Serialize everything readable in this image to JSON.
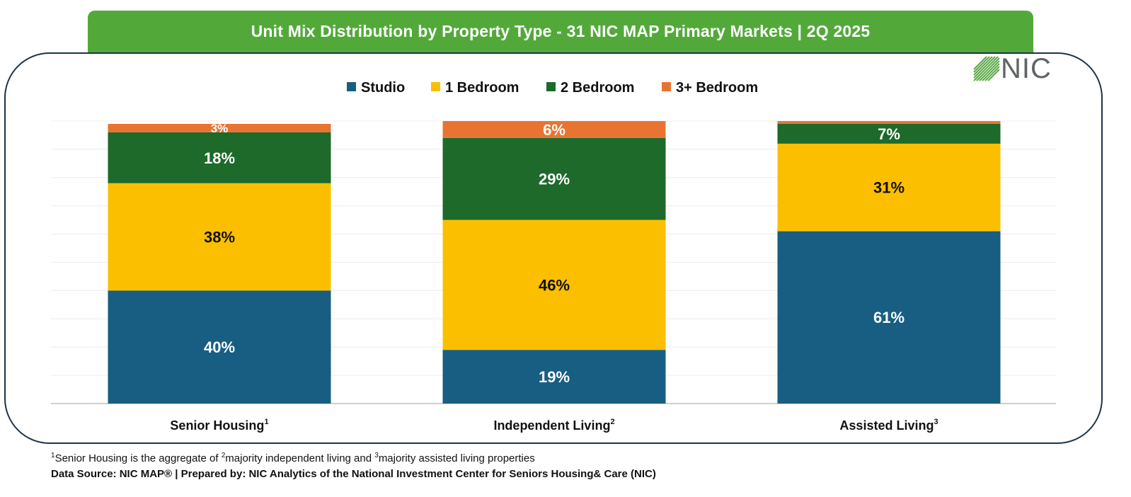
{
  "header": {
    "title": "Unit Mix Distribution by Property Type - 31 NIC MAP Primary Markets | 2Q 2025"
  },
  "logo": {
    "text": "NIC"
  },
  "colors": {
    "title_bar": "#52a93a",
    "studio": "#175e82",
    "one_bedroom": "#fcbf00",
    "two_bedroom": "#1d6a2a",
    "three_plus_bedroom": "#e97432"
  },
  "chart_data": {
    "type": "bar",
    "stacked": true,
    "categories": [
      "Senior Housing",
      "Independent Living",
      "Assisted Living"
    ],
    "category_superscripts": [
      "1",
      "2",
      "3"
    ],
    "series": [
      {
        "name": "Studio",
        "values": [
          40,
          19,
          61
        ],
        "labels": [
          "40%",
          "19%",
          "61%"
        ]
      },
      {
        "name": "1 Bedroom",
        "values": [
          38,
          46,
          31
        ],
        "labels": [
          "38%",
          "46%",
          "31%"
        ]
      },
      {
        "name": "2 Bedroom",
        "values": [
          18,
          29,
          7
        ],
        "labels": [
          "18%",
          "29%",
          "7%"
        ]
      },
      {
        "name": "3+ Bedroom",
        "values": [
          3,
          6,
          1
        ],
        "labels": [
          "3%",
          "6%",
          ""
        ]
      }
    ],
    "ylim": [
      0,
      100
    ],
    "grid": true,
    "legend": "top"
  },
  "footnote": {
    "sup1": "1",
    "part1": "Senior Housing is the aggregate of ",
    "sup2": "2",
    "part2": "majority independent living and ",
    "sup3": "3",
    "part3": "majority assisted living properties"
  },
  "source": "Data Source: NIC MAP® | Prepared by: NIC Analytics of the National Investment Center for Seniors Housing& Care (NIC)"
}
